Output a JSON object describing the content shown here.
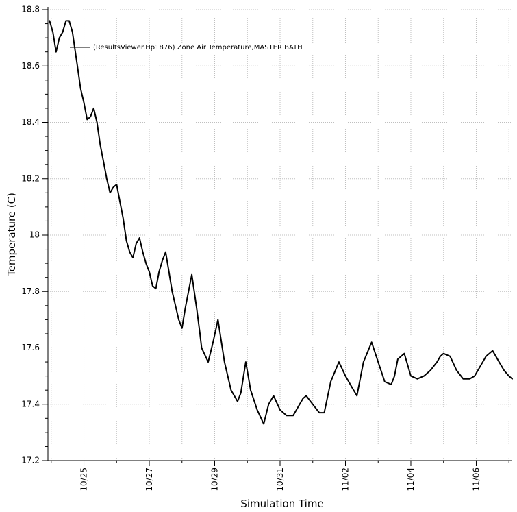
{
  "chart_data": {
    "type": "line",
    "title": "",
    "xlabel": "Simulation Time",
    "ylabel": "Temperature (C)",
    "ylim": [
      17.2,
      18.8
    ],
    "y_ticks": [
      17.2,
      17.4,
      17.6,
      17.8,
      18,
      18.2,
      18.4,
      18.6,
      18.8
    ],
    "y_tick_labels": [
      "17.2",
      "17.4",
      "17.6",
      "17.8",
      "18",
      "18.2",
      "18.4",
      "18.6",
      "18.8"
    ],
    "x_tick_labels": [
      "10/25",
      "10/27",
      "10/29",
      "10/31",
      "11/02",
      "11/04",
      "11/06"
    ],
    "grid": true,
    "legend_position": "top",
    "colors": {
      "line": "#000000",
      "grid": "#bfbfbf",
      "axis": "#000000"
    },
    "series": [
      {
        "name": "(ResultsViewer.Hp1876) Zone Air Temperature,MASTER BATH",
        "x_unit": "days from 10/25",
        "x": [
          -1.05,
          -0.95,
          -0.85,
          -0.75,
          -0.65,
          -0.55,
          -0.45,
          -0.35,
          -0.3,
          -0.2,
          -0.1,
          0.0,
          0.1,
          0.2,
          0.3,
          0.4,
          0.5,
          0.6,
          0.7,
          0.8,
          0.9,
          1.0,
          1.1,
          1.2,
          1.3,
          1.4,
          1.5,
          1.6,
          1.7,
          1.8,
          1.9,
          2.0,
          2.1,
          2.2,
          2.3,
          2.4,
          2.5,
          2.6,
          2.7,
          2.8,
          2.9,
          3.0,
          3.1,
          3.2,
          3.3,
          3.45,
          3.55,
          3.6,
          3.8,
          3.95,
          4.1,
          4.3,
          4.5,
          4.7,
          4.8,
          4.95,
          5.1,
          5.3,
          5.5,
          5.65,
          5.8,
          6.0,
          6.2,
          6.4,
          6.6,
          6.7,
          6.8,
          7.0,
          7.2,
          7.35,
          7.55,
          7.8,
          8.0,
          8.2,
          8.35,
          8.55,
          8.8,
          9.0,
          9.2,
          9.4,
          9.5,
          9.6,
          9.8,
          10.0,
          10.2,
          10.4,
          10.6,
          10.8,
          10.9,
          11.0,
          11.2,
          11.4,
          11.6,
          11.8,
          11.95,
          12.1,
          12.3,
          12.5,
          12.7,
          12.85,
          13.0,
          13.1
        ],
        "y": [
          18.76,
          18.72,
          18.65,
          18.7,
          18.72,
          18.76,
          18.76,
          18.72,
          18.68,
          18.6,
          18.52,
          18.47,
          18.41,
          18.42,
          18.45,
          18.4,
          18.32,
          18.26,
          18.2,
          18.15,
          18.17,
          18.18,
          18.12,
          18.06,
          17.98,
          17.94,
          17.92,
          17.97,
          17.99,
          17.94,
          17.9,
          17.87,
          17.82,
          17.81,
          17.87,
          17.91,
          17.94,
          17.87,
          17.8,
          17.75,
          17.7,
          17.67,
          17.74,
          17.8,
          17.86,
          17.74,
          17.65,
          17.6,
          17.55,
          17.62,
          17.7,
          17.55,
          17.45,
          17.41,
          17.44,
          17.55,
          17.45,
          17.38,
          17.33,
          17.4,
          17.43,
          17.38,
          17.36,
          17.36,
          17.4,
          17.42,
          17.43,
          17.4,
          17.37,
          17.37,
          17.48,
          17.55,
          17.5,
          17.46,
          17.43,
          17.55,
          17.62,
          17.55,
          17.48,
          17.47,
          17.5,
          17.56,
          17.58,
          17.5,
          17.49,
          17.5,
          17.52,
          17.55,
          17.57,
          17.58,
          17.57,
          17.52,
          17.49,
          17.49,
          17.5,
          17.53,
          17.57,
          17.59,
          17.55,
          17.52,
          17.5,
          17.49
        ]
      }
    ]
  }
}
